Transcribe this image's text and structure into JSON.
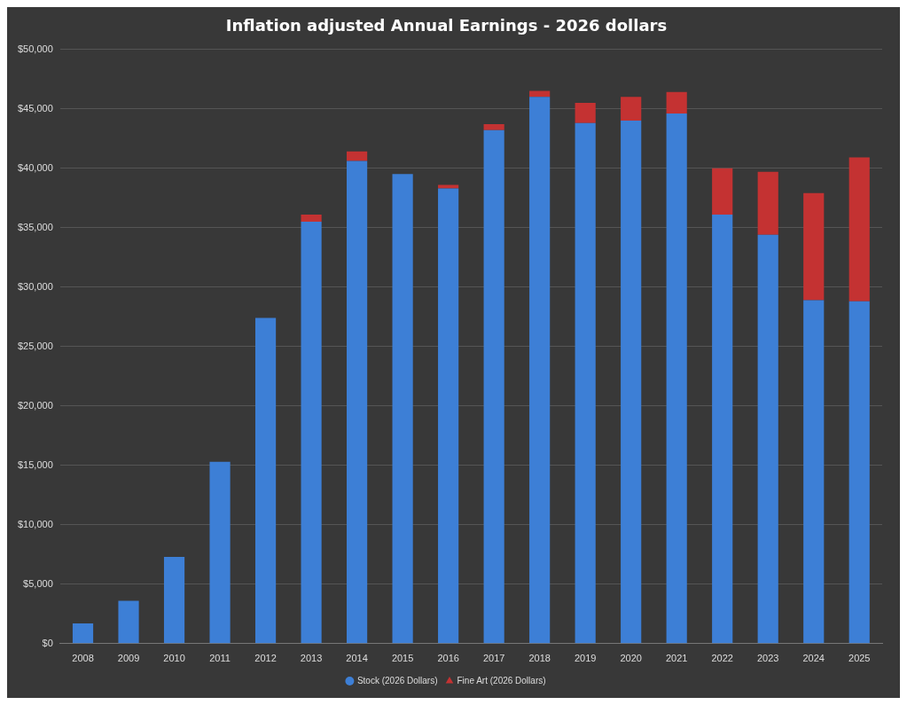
{
  "chart_data": {
    "type": "bar",
    "title": "Inflation adjusted Annual Earnings - 2026 dollars",
    "categories": [
      "2008",
      "2009",
      "2010",
      "2011",
      "2012",
      "2013",
      "2014",
      "2015",
      "2016",
      "2017",
      "2018",
      "2019",
      "2020",
      "2021",
      "2022",
      "2023",
      "2024",
      "2025"
    ],
    "series": [
      {
        "name": "Stock (2026 Dollars)",
        "color": "#3d7fd6",
        "values": [
          1700,
          3600,
          7300,
          15300,
          27400,
          35500,
          40600,
          39500,
          38300,
          43200,
          46000,
          43800,
          44000,
          44600,
          36100,
          34400,
          28900,
          28800
        ]
      },
      {
        "name": "Fine Art (2026 Dollars)",
        "color": "#c43232",
        "values": [
          0,
          0,
          0,
          0,
          0,
          600,
          800,
          0,
          300,
          500,
          500,
          1700,
          2000,
          1800,
          3900,
          5300,
          9000,
          12100
        ]
      }
    ],
    "stacked": true,
    "ylim": [
      0,
      50000
    ],
    "yticks": [
      {
        "value": 0,
        "label": "$0"
      },
      {
        "value": 5000,
        "label": "$5,000"
      },
      {
        "value": 10000,
        "label": "$10,000"
      },
      {
        "value": 15000,
        "label": "$15,000"
      },
      {
        "value": 20000,
        "label": "$20,000"
      },
      {
        "value": 25000,
        "label": "$25,000"
      },
      {
        "value": 30000,
        "label": "$30,000"
      },
      {
        "value": 35000,
        "label": "$35,000"
      },
      {
        "value": 40000,
        "label": "$40,000"
      },
      {
        "value": 45000,
        "label": "$45,000"
      },
      {
        "value": 50000,
        "label": "$50,000"
      }
    ],
    "grid": "y",
    "legend": "bottom"
  }
}
